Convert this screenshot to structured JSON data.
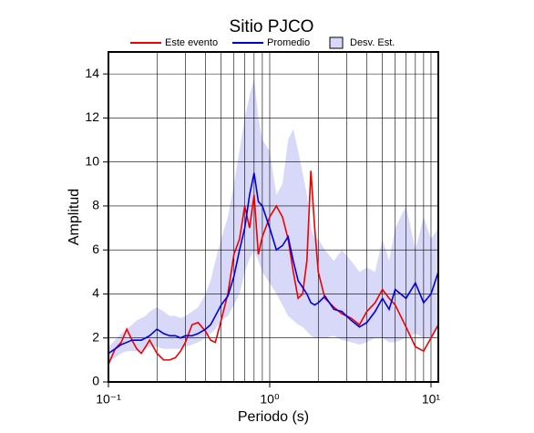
{
  "chart_data": {
    "type": "line",
    "title": "Sitio PJCO",
    "xlabel": "Periodo (s)",
    "ylabel": "Amplitud",
    "xscale": "log",
    "grid": true,
    "legend": "top",
    "xlim": [
      0.1,
      11.1
    ],
    "ylim": [
      0,
      15
    ],
    "xticks": [
      {
        "value": 0.1,
        "label": "10⁻¹"
      },
      {
        "value": 1,
        "label": "10⁰"
      },
      {
        "value": 10,
        "label": "10¹"
      }
    ],
    "xgrid": [
      0.2,
      0.3,
      0.4,
      0.5,
      0.6,
      0.7,
      0.8,
      0.9,
      2,
      3,
      4,
      5,
      6,
      7,
      8,
      9
    ],
    "yticks": [
      0,
      2,
      4,
      6,
      8,
      10,
      12,
      14
    ],
    "x": [
      0.1,
      0.11,
      0.12,
      0.13,
      0.14,
      0.15,
      0.16,
      0.17,
      0.18,
      0.2,
      0.22,
      0.24,
      0.26,
      0.28,
      0.3,
      0.33,
      0.36,
      0.4,
      0.43,
      0.46,
      0.5,
      0.55,
      0.6,
      0.65,
      0.7,
      0.75,
      0.8,
      0.85,
      0.9,
      1.0,
      1.1,
      1.2,
      1.3,
      1.4,
      1.5,
      1.6,
      1.7,
      1.8,
      1.9,
      2.0,
      2.2,
      2.5,
      2.8,
      3.2,
      3.6,
      4.0,
      4.5,
      5.0,
      5.5,
      6.0,
      7.0,
      8.0,
      9.0,
      10.0,
      11.1
    ],
    "series": [
      {
        "name": "Este evento",
        "color": "#ee0000",
        "values": [
          0.8,
          1.5,
          1.8,
          2.4,
          1.9,
          1.5,
          1.3,
          1.6,
          1.9,
          1.3,
          1.0,
          1.0,
          1.1,
          1.4,
          1.8,
          2.6,
          2.7,
          2.3,
          1.9,
          1.8,
          2.8,
          4.0,
          5.8,
          6.5,
          8.0,
          7.0,
          8.5,
          5.8,
          6.6,
          7.5,
          8.0,
          7.5,
          6.5,
          5.0,
          3.8,
          4.0,
          5.5,
          9.6,
          7.0,
          5.0,
          3.8,
          3.4,
          3.1,
          2.9,
          2.6,
          3.2,
          3.6,
          4.2,
          3.8,
          3.5,
          2.5,
          1.6,
          1.4,
          2.0,
          2.6
        ]
      },
      {
        "name": "Promedio",
        "color": "#0000dd",
        "values": [
          1.3,
          1.5,
          1.7,
          1.8,
          1.9,
          1.9,
          1.9,
          2.0,
          2.1,
          2.4,
          2.2,
          2.1,
          2.1,
          2.0,
          2.1,
          2.1,
          2.2,
          2.4,
          2.6,
          3.0,
          3.5,
          3.9,
          4.8,
          6.0,
          7.0,
          8.5,
          9.5,
          8.2,
          8.0,
          7.0,
          6.0,
          6.2,
          6.6,
          5.5,
          4.6,
          4.3,
          4.0,
          3.6,
          3.5,
          3.6,
          3.9,
          3.3,
          3.2,
          2.8,
          2.5,
          2.7,
          3.2,
          3.8,
          3.3,
          4.2,
          3.8,
          4.5,
          3.6,
          4.0,
          5.0
        ]
      },
      {
        "name": "Desv. Est.",
        "color": "#d8d8f8",
        "upper": [
          1.6,
          1.9,
          2.2,
          2.4,
          2.6,
          2.8,
          2.9,
          3.0,
          3.2,
          3.4,
          3.2,
          3.0,
          3.0,
          2.9,
          3.0,
          3.2,
          3.4,
          4.0,
          4.6,
          5.5,
          6.5,
          7.5,
          9.0,
          10.5,
          12.0,
          13.0,
          13.8,
          12.0,
          11.0,
          10.5,
          8.5,
          9.0,
          11.0,
          11.5,
          10.5,
          9.5,
          8.5,
          7.0,
          6.5,
          6.5,
          6.0,
          5.5,
          6.0,
          5.5,
          5.0,
          5.2,
          5.0,
          6.5,
          5.5,
          7.0,
          8.0,
          6.0,
          7.5,
          6.5,
          7.0
        ],
        "lower": [
          0.9,
          1.1,
          1.3,
          1.4,
          1.4,
          1.4,
          1.4,
          1.5,
          1.6,
          1.6,
          1.5,
          1.5,
          1.5,
          1.5,
          1.6,
          1.7,
          1.8,
          2.0,
          2.2,
          2.4,
          2.8,
          3.0,
          3.5,
          4.0,
          5.0,
          5.6,
          6.0,
          5.5,
          5.0,
          4.5,
          4.0,
          3.5,
          3.0,
          2.8,
          2.6,
          2.5,
          2.3,
          2.1,
          2.0,
          2.0,
          2.0,
          2.1,
          1.9,
          1.8,
          1.7,
          1.8,
          2.0,
          2.0,
          1.8,
          1.8,
          2.0,
          2.2,
          2.0,
          2.0,
          2.5
        ]
      }
    ]
  }
}
